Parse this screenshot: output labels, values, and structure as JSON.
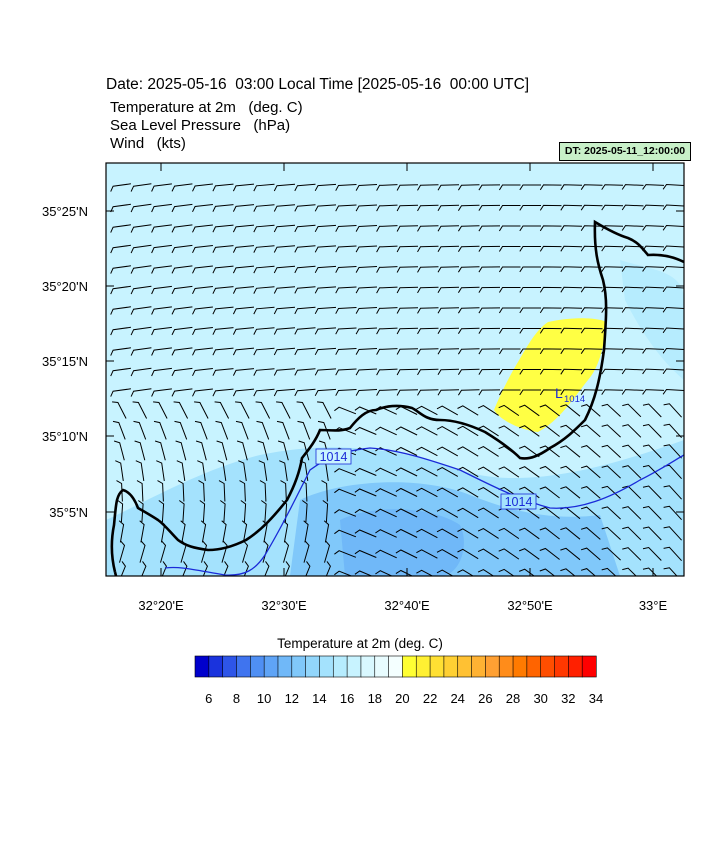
{
  "header": {
    "date_line": "Date: 2025-05-16  03:00 Local Time [2025-05-16  00:00 UTC]",
    "fields": [
      "Temperature at 2m   (deg. C)",
      "Sea Level Pressure   (hPa)",
      "Wind   (kts)"
    ],
    "dt_label": "DT: 2025-05-11_12:00:00"
  },
  "map": {
    "lon_labels": [
      "32°20'E",
      "32°30'E",
      "32°40'E",
      "32°50'E",
      "33°E"
    ],
    "lat_labels": [
      "35°25'N",
      "35°20'N",
      "35°15'N",
      "35°10'N",
      "35°5'N"
    ],
    "isobar_labels": [
      "1014",
      "1014"
    ],
    "low_center": {
      "letter": "L",
      "value": "1014"
    }
  },
  "colorbar": {
    "title": "Temperature at 2m  (deg. C)",
    "ticks": [
      "6",
      "8",
      "10",
      "12",
      "14",
      "16",
      "18",
      "20",
      "22",
      "24",
      "26",
      "28",
      "30",
      "32",
      "34"
    ],
    "colors": [
      "#0000cc",
      "#1a33dd",
      "#2e55e8",
      "#3f74ef",
      "#4f8ff3",
      "#5fa4f6",
      "#70b8f8",
      "#80c8fa",
      "#92d6fb",
      "#a4e2fd",
      "#b6ecfe",
      "#c8f3ff",
      "#d9f8ff",
      "#e8fcff",
      "#f4ffff",
      "#ffff33",
      "#fff033",
      "#ffe033",
      "#ffd033",
      "#ffc133",
      "#ffb233",
      "#ffa033",
      "#ff8c1a",
      "#ff7a00",
      "#ff6400",
      "#ff4e00",
      "#ff3800",
      "#ff2000",
      "#ff0000"
    ]
  }
}
